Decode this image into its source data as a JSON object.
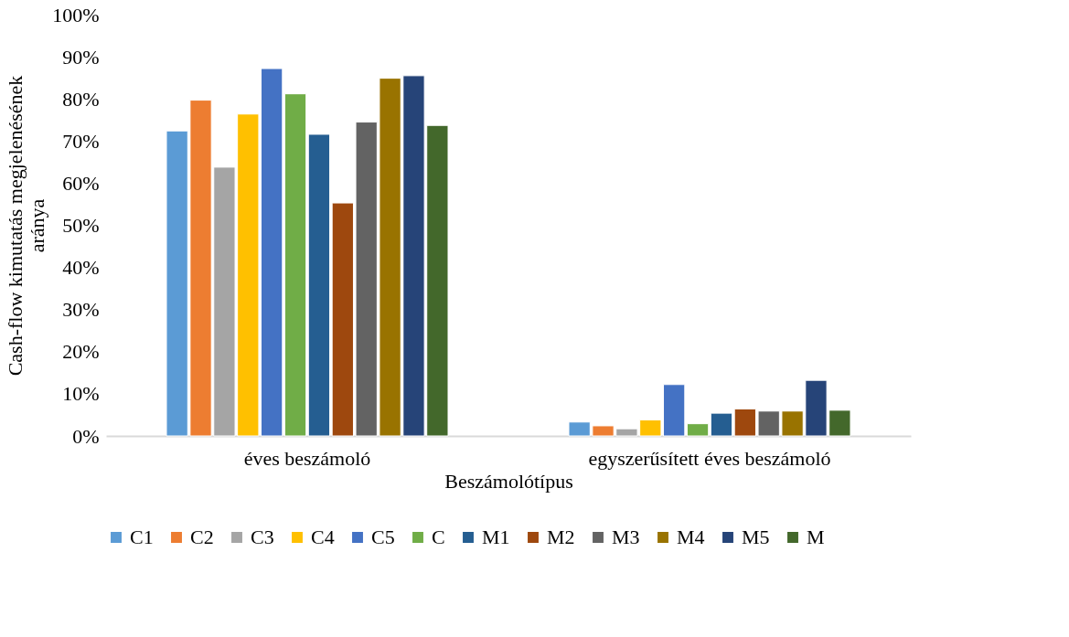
{
  "chart_data": {
    "type": "bar",
    "xlabel": "Beszámolótípus",
    "ylabel": "Cash-flow kimutatás megjelenésének aránya",
    "categories": [
      "éves beszámoló",
      "egyszerűsített éves beszámoló"
    ],
    "series": [
      {
        "name": "C1",
        "color": "#5b9bd5",
        "values": [
          72.4,
          3.3
        ]
      },
      {
        "name": "C2",
        "color": "#ed7d31",
        "values": [
          79.7,
          2.4
        ]
      },
      {
        "name": "C3",
        "color": "#a5a5a5",
        "values": [
          63.8,
          1.7
        ]
      },
      {
        "name": "C4",
        "color": "#ffc000",
        "values": [
          76.4,
          3.8
        ]
      },
      {
        "name": "C5",
        "color": "#4472c4",
        "values": [
          87.2,
          12.2
        ]
      },
      {
        "name": "C",
        "color": "#70ad47",
        "values": [
          81.2,
          2.9
        ]
      },
      {
        "name": "M1",
        "color": "#255e91",
        "values": [
          71.6,
          5.4
        ]
      },
      {
        "name": "M2",
        "color": "#9e480e",
        "values": [
          55.3,
          6.4
        ]
      },
      {
        "name": "M3",
        "color": "#636363",
        "values": [
          74.5,
          5.9
        ]
      },
      {
        "name": "M4",
        "color": "#997300",
        "values": [
          84.9,
          5.9
        ]
      },
      {
        "name": "M5",
        "color": "#264478",
        "values": [
          85.5,
          13.2
        ]
      },
      {
        "name": "M",
        "color": "#43682b",
        "values": [
          73.7,
          6.1
        ]
      }
    ],
    "ylim": [
      0,
      100
    ],
    "yticks": [
      {
        "value": 0,
        "label": "0%"
      },
      {
        "value": 10,
        "label": "10%"
      },
      {
        "value": 20,
        "label": "20%"
      },
      {
        "value": 30,
        "label": "30%"
      },
      {
        "value": 40,
        "label": "40%"
      },
      {
        "value": 50,
        "label": "50%"
      },
      {
        "value": 60,
        "label": "60%"
      },
      {
        "value": 70,
        "label": "70%"
      },
      {
        "value": 80,
        "label": "80%"
      },
      {
        "value": 90,
        "label": "90%"
      },
      {
        "value": 100,
        "label": "100%"
      }
    ],
    "grid": false,
    "legend": "bottom"
  }
}
